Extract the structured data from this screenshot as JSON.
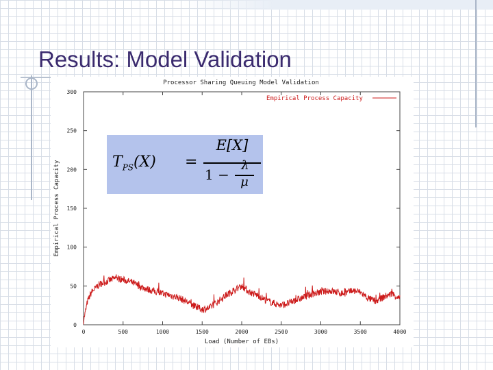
{
  "slide": {
    "title": "Results: Model Validation"
  },
  "formula": {
    "lhs": "T",
    "lhs_sub": "PS",
    "lhs_arg": "(X)",
    "equals": "=",
    "numerator": "E[X]",
    "denominator_one": "1",
    "denominator_minus": "−",
    "lambda": "λ",
    "mu": "μ"
  },
  "chart_data": {
    "type": "line",
    "title": "Processor Sharing Queuing Model Validation",
    "xlabel": "Load (Number of EBs)",
    "ylabel": "Empirical Process Capacity",
    "xlim": [
      0,
      4000
    ],
    "ylim": [
      0,
      300
    ],
    "x_ticks": [
      "0",
      "500",
      "1000",
      "1500",
      "2000",
      "2500",
      "3000",
      "3500",
      "4000"
    ],
    "y_ticks": [
      "0",
      "50",
      "100",
      "150",
      "200",
      "250",
      "300"
    ],
    "legend_position": "top-right",
    "grid": false,
    "series": [
      {
        "name": "Empirical Process Capacity",
        "color": "#cc1a1a",
        "x": [
          0,
          50,
          100,
          200,
          300,
          400,
          500,
          600,
          700,
          800,
          900,
          1000,
          1100,
          1200,
          1300,
          1400,
          1500,
          1600,
          1700,
          1800,
          1900,
          2000,
          2100,
          2200,
          2300,
          2400,
          2500,
          2600,
          2700,
          2800,
          2900,
          3000,
          3100,
          3200,
          3300,
          3400,
          3500,
          3600,
          3700,
          3800,
          3900,
          4000
        ],
        "y": [
          5,
          30,
          42,
          52,
          56,
          60,
          58,
          55,
          50,
          46,
          43,
          40,
          38,
          35,
          30,
          24,
          20,
          22,
          30,
          38,
          44,
          50,
          42,
          38,
          32,
          28,
          25,
          28,
          32,
          36,
          40,
          42,
          44,
          42,
          40,
          44,
          42,
          34,
          30,
          36,
          40,
          34
        ]
      }
    ]
  }
}
